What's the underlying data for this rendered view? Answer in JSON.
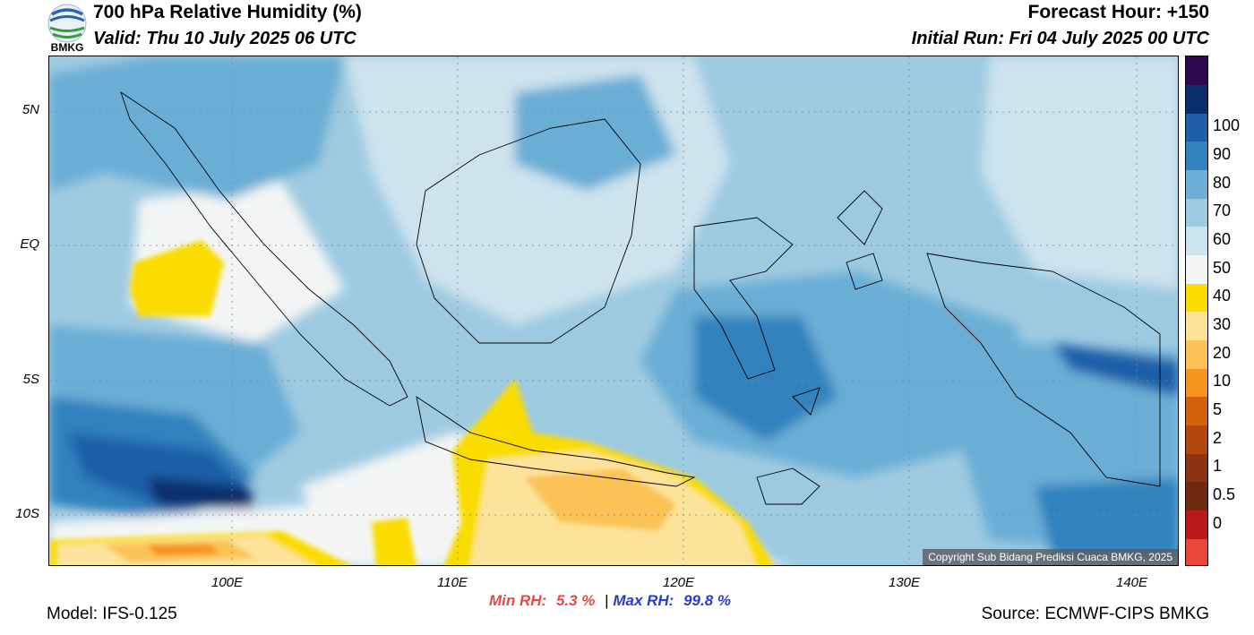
{
  "header": {
    "logo_text": "BMKG",
    "title": "700 hPa Relative Humidity (%)",
    "valid": "Valid: Thu 10 July 2025 06 UTC",
    "forecast_hour": "Forecast Hour: +150",
    "initial_run": "Initial Run: Fri 04 July 2025 00 UTC"
  },
  "map": {
    "lat_labels": [
      "5N",
      "EQ",
      "5S",
      "10S"
    ],
    "lon_labels": [
      "100E",
      "110E",
      "120E",
      "130E",
      "140E"
    ],
    "copyright": "Copyright Sub Bidang Prediksi Cuaca BMKG, 2025"
  },
  "colorbar": {
    "levels": [
      "0",
      "0.5",
      "1",
      "2",
      "5",
      "10",
      "20",
      "30",
      "40",
      "50",
      "60",
      "70",
      "80",
      "90",
      "100"
    ],
    "colors": [
      "#e8473a",
      "#b81a1a",
      "#6e2a10",
      "#8a3411",
      "#b0470f",
      "#d4620d",
      "#f5941f",
      "#fbc355",
      "#fde39a",
      "#fadc00",
      "#f3f5f5",
      "#cde3ee",
      "#9ecae1",
      "#6baed6",
      "#3182bd",
      "#1f5fa8",
      "#0a2f6b",
      "#2e0850"
    ]
  },
  "stats": {
    "min_label": "Min RH:",
    "min_value": "5.3 %",
    "separator": "|",
    "max_label": "Max RH:",
    "max_value": "99.8 %"
  },
  "footer": {
    "model": "Model: IFS-0.125",
    "source": "Source: ECMWF-CIPS BMKG"
  }
}
